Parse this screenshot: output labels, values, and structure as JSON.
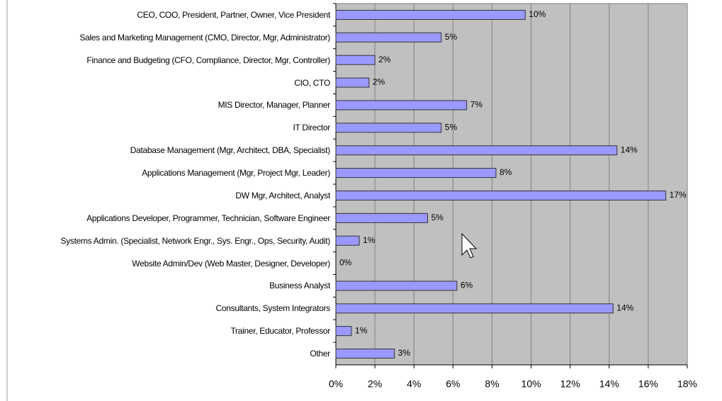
{
  "chart_data": {
    "type": "bar",
    "orientation": "horizontal",
    "categories": [
      "CEO, COO, President, Partner, Owner, Vice President",
      "Sales and Marketing Management (CMO, Director, Mgr, Administrator)",
      "Finance and Budgeting (CFO, Compliance, Director, Mgr, Controller)",
      "CIO, CTO",
      "MIS Director, Manager, Planner",
      "IT Director",
      "Database Management (Mgr, Architect, DBA, Specialist)",
      "Applications Management (Mgr, Project Mgr, Leader)",
      "DW Mgr, Architect, Analyst",
      "Applications Developer, Programmer, Technician, Software Engineer",
      "Systems Admin. (Specialist, Network Engr., Sys. Engr., Ops, Security, Audit)",
      "Website Admin/Dev (Web Master, Designer, Developer)",
      "Business Analyst",
      "Consultants, System Integrators",
      "Trainer, Educator, Professor",
      "Other"
    ],
    "values": [
      9.7,
      5.4,
      2.0,
      1.7,
      6.7,
      5.4,
      14.4,
      8.2,
      16.9,
      4.7,
      1.2,
      0,
      6.2,
      14.2,
      0.8,
      3.0
    ],
    "value_labels": [
      "10%",
      "5%",
      "2%",
      "2%",
      "7%",
      "5%",
      "14%",
      "8%",
      "17%",
      "5%",
      "1%",
      "0%",
      "6%",
      "14%",
      "1%",
      "3%"
    ],
    "color": "#9999ff",
    "xlim": [
      0,
      18
    ],
    "xticks": [
      {
        "value": 0,
        "label": "0%"
      },
      {
        "value": 2,
        "label": "2%"
      },
      {
        "value": 4,
        "label": "4%"
      },
      {
        "value": 6,
        "label": "6%"
      },
      {
        "value": 8,
        "label": "8%"
      },
      {
        "value": 10,
        "label": "10%"
      },
      {
        "value": 12,
        "label": "12%"
      },
      {
        "value": 14,
        "label": "14%"
      },
      {
        "value": 16,
        "label": "16%"
      },
      {
        "value": 18,
        "label": "18%"
      }
    ],
    "grid": true
  }
}
